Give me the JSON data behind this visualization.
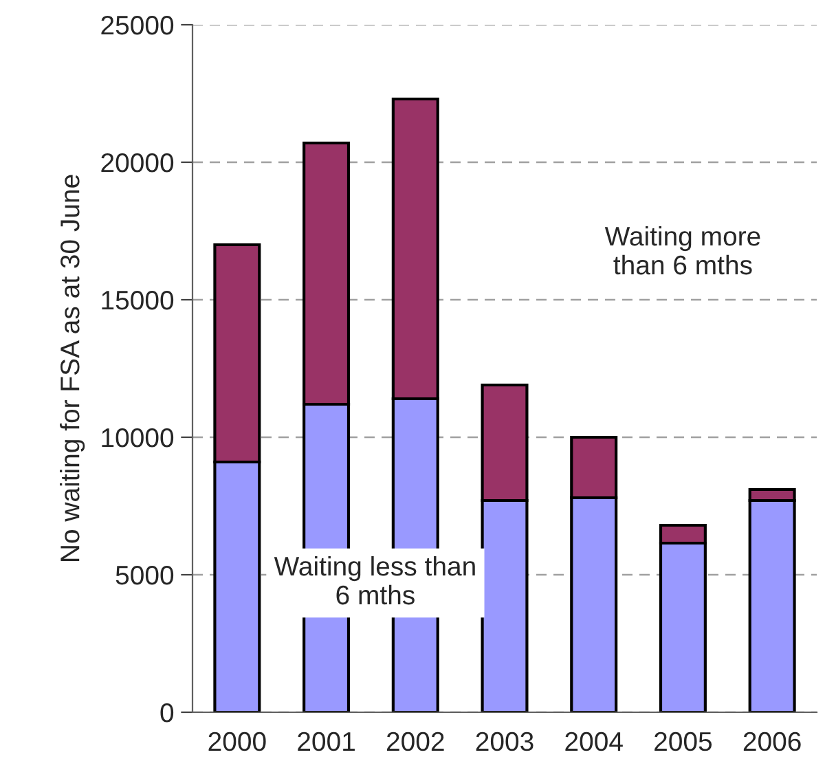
{
  "chart_data": {
    "type": "bar",
    "stacked": true,
    "ylabel": "No waiting for FSA as at 30 June",
    "categories": [
      "2000",
      "2001",
      "2002",
      "2003",
      "2004",
      "2005",
      "2006"
    ],
    "series": [
      {
        "color": "#9999ff",
        "values": [
          9100,
          11200,
          11400,
          7700,
          7800,
          6150,
          7700
        ]
      },
      {
        "color": "#993366",
        "values": [
          7900,
          9500,
          10900,
          4200,
          2200,
          650,
          400
        ]
      }
    ],
    "ylim": [
      0,
      25000
    ],
    "yticks": [
      0,
      5000,
      10000,
      15000,
      20000,
      25000
    ],
    "grid": "y",
    "legend": false,
    "annotations": [
      "Waiting more than 6 mths",
      "Waiting less than 6 mths"
    ]
  }
}
